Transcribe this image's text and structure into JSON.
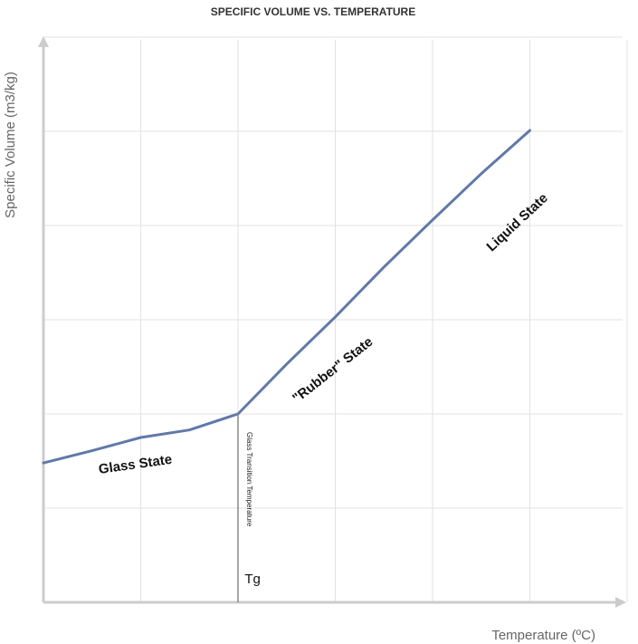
{
  "chart_data": {
    "type": "line",
    "title": "SPECIFIC VOLUME VS. TEMPERATURE",
    "xlabel": "Temperature  (ºC)",
    "ylabel": "Specific Volume (m3/kg)",
    "xlim": [
      0,
      6
    ],
    "ylim": [
      0,
      6
    ],
    "grid": true,
    "x_gridlines": [
      1,
      2,
      3,
      4,
      5,
      6
    ],
    "y_gridlines": [
      1,
      2,
      3,
      4,
      5,
      6
    ],
    "series": [
      {
        "color": "#6079a8",
        "x": [
          0,
          0.5,
          1.0,
          1.5,
          2.0,
          2.5,
          3.0,
          3.5,
          4.0,
          4.5,
          5.0
        ],
        "y": [
          1.48,
          1.61,
          1.75,
          1.83,
          2.0,
          2.53,
          3.03,
          3.56,
          4.06,
          4.55,
          5.01
        ]
      }
    ],
    "vline": {
      "x": 2.0,
      "label": "Glass Transition Temperature"
    },
    "annotations": [
      {
        "text": "Glass State",
        "x": 0.95,
        "y": 1.42,
        "angle": -8
      },
      {
        "text": "\"Rubber\" State",
        "x": 3.0,
        "y": 2.43,
        "angle": -38
      },
      {
        "text": "Liquid State",
        "x": 4.9,
        "y": 4.0,
        "angle": -43
      },
      {
        "text": "Tg",
        "x": 2.15,
        "y": 0.2,
        "angle": 0
      }
    ]
  }
}
